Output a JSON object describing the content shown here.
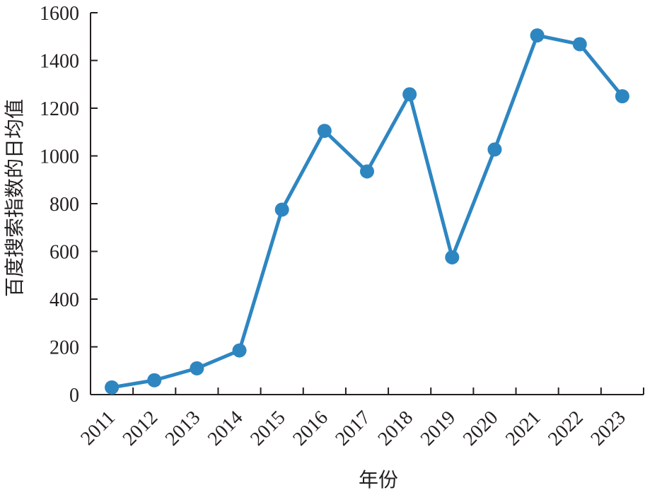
{
  "chart_data": {
    "type": "line",
    "title": "",
    "xlabel": "年份",
    "ylabel": "百度搜索指数的日均值",
    "categories": [
      "2011",
      "2012",
      "2013",
      "2014",
      "2015",
      "2016",
      "2017",
      "2018",
      "2019",
      "2020",
      "2021",
      "2022",
      "2023"
    ],
    "series": [
      {
        "values": [
          30,
          60,
          110,
          185,
          775,
          1105,
          935,
          1258,
          575,
          1027,
          1505,
          1468,
          1250
        ]
      }
    ],
    "ylim": [
      0,
      1600
    ],
    "yticks": [
      "0",
      "200",
      "400",
      "600",
      "800",
      "1000",
      "1200",
      "1400",
      "1600"
    ],
    "grid": false,
    "legend": "none",
    "colors": {
      "series": "#2e86c1",
      "axis": "#231f20"
    }
  }
}
